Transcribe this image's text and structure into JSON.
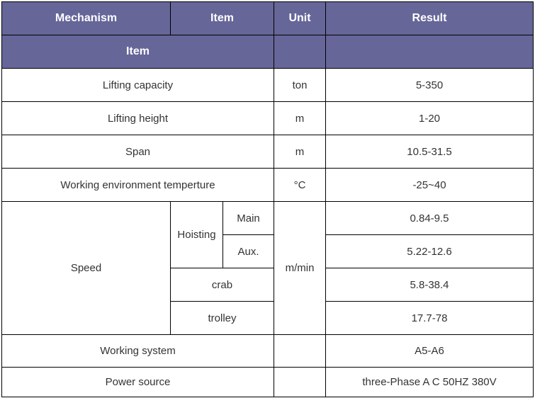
{
  "header": {
    "mechanism": "Mechanism",
    "item": "Item",
    "unit": "Unit",
    "result": "Result",
    "item2": "Item"
  },
  "rows": [
    {
      "item": "Lifting capacity",
      "unit": "ton",
      "result": "5-350"
    },
    {
      "item": "Lifting height",
      "unit": "m",
      "result": "1-20"
    },
    {
      "item": "Span",
      "unit": "m",
      "result": "10.5-31.5"
    },
    {
      "item": "Working environment temperture",
      "unit": "°C",
      "result": "-25~40"
    }
  ],
  "speed": {
    "label": "Speed",
    "hoisting": "Hoisting",
    "main": "Main",
    "aux": "Aux.",
    "crab": "crab",
    "trolley": "trolley",
    "unit": "m/min",
    "main_result": "0.84-9.5",
    "aux_result": "5.22-12.6",
    "crab_result": "5.8-38.4",
    "trolley_result": "17.7-78"
  },
  "working_system": {
    "item": "Working system",
    "result": "A5-A6"
  },
  "power_source": {
    "item": "Power source",
    "result": "three-Phase A C 50HZ 380V"
  },
  "colors": {
    "header_bg": "#666699"
  }
}
